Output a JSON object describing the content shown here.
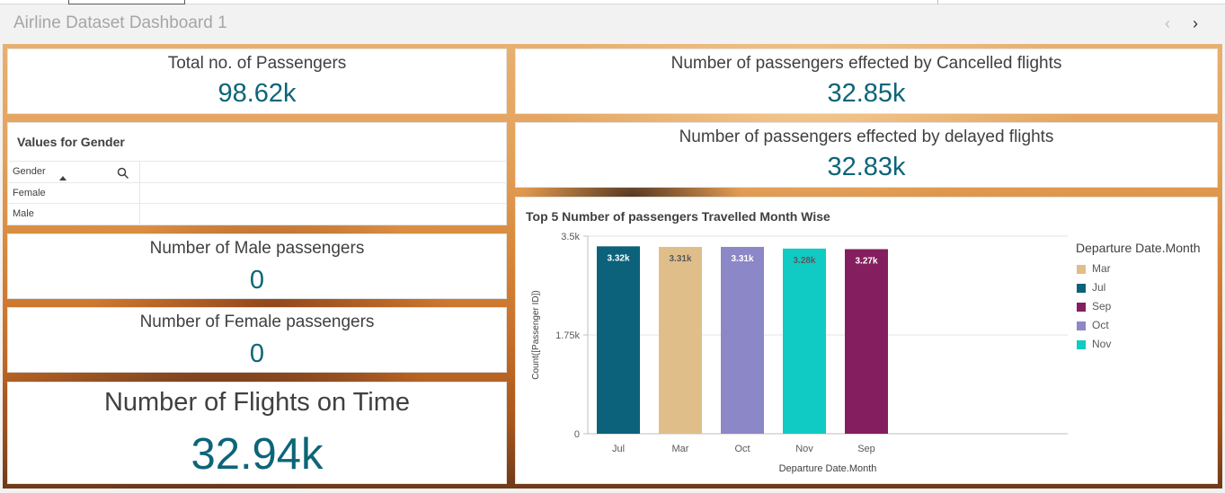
{
  "header": {
    "title": "Airline Dataset Dashboard 1",
    "prev_icon": "chevron-left-icon",
    "next_icon": "chevron-right-icon"
  },
  "kpis": {
    "total_passengers": {
      "label": "Total no. of Passengers",
      "value": "98.62k"
    },
    "cancelled": {
      "label": "Number of passengers effected by Cancelled flights",
      "value": "32.85k"
    },
    "delayed": {
      "label": "Number of passengers effected by delayed flights",
      "value": "32.83k"
    },
    "male": {
      "label": "Number of Male passengers",
      "value": "0"
    },
    "female": {
      "label": "Number of Female passengers",
      "value": "0"
    },
    "on_time": {
      "label": "Number of Flights on Time",
      "value": "32.94k"
    }
  },
  "gender_filter": {
    "title": "Values for Gender",
    "column_header": "Gender",
    "values": [
      "Female",
      "Male"
    ]
  },
  "colors": {
    "kpi_value": "#0c6578",
    "text": "#404040"
  },
  "chart_data": {
    "type": "bar",
    "title": "Top 5 Number of passengers Travelled Month Wise",
    "xlabel": "Departure Date.Month",
    "ylabel": "Count([Passenger ID])",
    "categories": [
      "Jul",
      "Mar",
      "Oct",
      "Nov",
      "Sep"
    ],
    "values": [
      3320,
      3310,
      3310,
      3280,
      3270
    ],
    "data_labels": [
      "3.32k",
      "3.31k",
      "3.31k",
      "3.28k",
      "3.27k"
    ],
    "colors": [
      "#0b627a",
      "#e0be8a",
      "#8c87c7",
      "#10cbc3",
      "#851e5e"
    ],
    "label_colors": [
      "#ffffff",
      "#595959",
      "#ffffff",
      "#595959",
      "#ffffff"
    ],
    "ylim": [
      0,
      3500
    ],
    "yticks": [
      0,
      1750,
      3500
    ],
    "ytick_labels": [
      "0",
      "1.75k",
      "3.5k"
    ],
    "grid": true,
    "legend": {
      "title": "Departure Date.Month",
      "position": "right",
      "items": [
        {
          "label": "Mar",
          "color": "#e0be8a"
        },
        {
          "label": "Jul",
          "color": "#0b627a"
        },
        {
          "label": "Sep",
          "color": "#851e5e"
        },
        {
          "label": "Oct",
          "color": "#8c87c7"
        },
        {
          "label": "Nov",
          "color": "#10cbc3"
        }
      ]
    }
  }
}
